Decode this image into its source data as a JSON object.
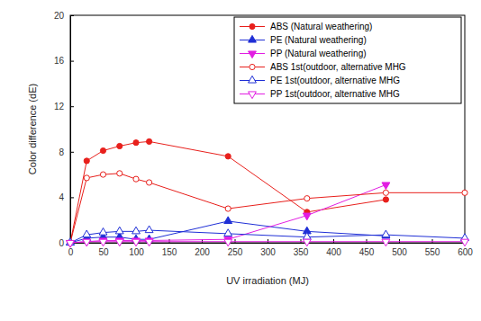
{
  "chart_data": {
    "type": "line",
    "x_label": "UV irradiation (MJ)",
    "y_label": "Color difference (dE)",
    "x": [
      0,
      25,
      50,
      75,
      100,
      120,
      240,
      360,
      480,
      600
    ],
    "xlim": [
      0,
      600
    ],
    "xticks": [
      0,
      50,
      100,
      150,
      200,
      250,
      300,
      350,
      400,
      450,
      500,
      550,
      600
    ],
    "ylim": [
      0,
      20
    ],
    "yticks": [
      0,
      4,
      8,
      12,
      16,
      20
    ],
    "grid": false,
    "legend": "upper right",
    "series": [
      {
        "name": "ABS (Natural weathering)",
        "color": "#e8201c",
        "marker": "circle",
        "line_style": "solid",
        "values": [
          0,
          7.2,
          8.1,
          8.5,
          8.8,
          8.9,
          7.6,
          2.7,
          3.8,
          null
        ]
      },
      {
        "name": "PE (Natural weathering)",
        "color": "#1f2fd6",
        "marker": "triangle-up",
        "line_style": "solid",
        "values": [
          0,
          0.4,
          0.5,
          0.5,
          0.3,
          0.3,
          1.9,
          1.0,
          0.6,
          null
        ]
      },
      {
        "name": "PP (Natural weathering)",
        "color": "#e21ee2",
        "marker": "triangle-down",
        "line_style": "solid",
        "values": [
          0,
          0.1,
          0.2,
          0.2,
          0.2,
          0.2,
          0.3,
          2.4,
          5.1,
          null
        ]
      },
      {
        "name": "ABS 1st(outdoor, alternative MHG",
        "color": "#e8201c",
        "marker": "circle-open",
        "line_style": "solid",
        "values": [
          0,
          5.7,
          6.0,
          6.1,
          5.6,
          5.3,
          3.0,
          3.9,
          4.4,
          4.4
        ]
      },
      {
        "name": "PE 1st(outdoor, alternative MHG",
        "color": "#1f2fd6",
        "marker": "triangle-up-open",
        "line_style": "solid",
        "values": [
          0,
          0.7,
          0.9,
          1.0,
          1.0,
          1.1,
          0.8,
          0.5,
          0.7,
          0.4
        ]
      },
      {
        "name": "PP 1st(outdoor, alternative MHG",
        "color": "#e21ee2",
        "marker": "triangle-down-open",
        "line_style": "solid",
        "values": [
          0,
          0.1,
          0.1,
          0.1,
          0.1,
          0.1,
          0.1,
          0.1,
          0.1,
          0.1
        ]
      }
    ]
  }
}
